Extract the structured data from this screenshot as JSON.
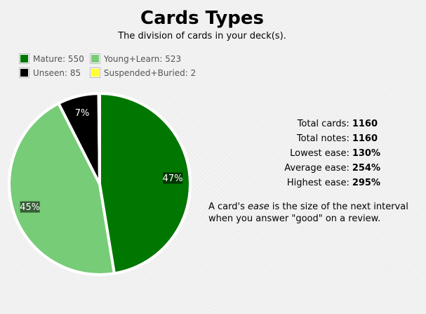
{
  "header": {
    "title": "Cards Types",
    "subtitle": "The division of cards in your deck(s)."
  },
  "legend": [
    {
      "label": "Mature: 550",
      "color": "#007700"
    },
    {
      "label": "Young+Learn: 523",
      "color": "#77cc77"
    },
    {
      "label": "Unseen: 85",
      "color": "#000000"
    },
    {
      "label": "Suspended+Buried: 2",
      "color": "#ffff33"
    }
  ],
  "stats": [
    {
      "label": "Total cards:",
      "value": "1160"
    },
    {
      "label": "Total notes:",
      "value": "1160"
    },
    {
      "label": "Lowest ease:",
      "value": "130%"
    },
    {
      "label": "Average ease:",
      "value": "254%"
    },
    {
      "label": "Highest ease:",
      "value": "295%"
    }
  ],
  "note": {
    "prefix": "A card's ",
    "emphasis": "ease",
    "suffix": " is the size of the next interval when you answer \"good\" on a review."
  },
  "chart_data": {
    "type": "pie",
    "title": "Cards Types",
    "subtitle": "The division of cards in your deck(s).",
    "slices": [
      {
        "name": "Mature",
        "value": 550,
        "color": "#007700",
        "label": "47%"
      },
      {
        "name": "Young+Learn",
        "value": 523,
        "color": "#77cc77",
        "label": "45%"
      },
      {
        "name": "Unseen",
        "value": 85,
        "color": "#000000",
        "label": "7%"
      },
      {
        "name": "Suspended+Buried",
        "value": 2,
        "color": "#ffff33",
        "label": ""
      }
    ],
    "legend_position": "top-left"
  }
}
